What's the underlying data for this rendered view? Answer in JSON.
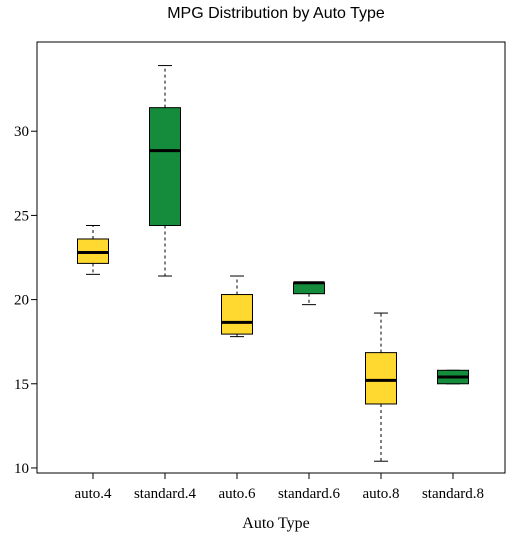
{
  "chart_data": {
    "type": "boxplot",
    "title": "MPG Distribution by Auto Type",
    "xlabel": "Auto Type",
    "ylabel": "",
    "ylim": [
      9.7,
      35.3
    ],
    "yticks": [
      10,
      15,
      20,
      25,
      30
    ],
    "grid": false,
    "categories": [
      "auto.4",
      "standard.4",
      "auto.6",
      "standard.6",
      "auto.8",
      "standard.8"
    ],
    "boxes": [
      {
        "category": "auto.4",
        "min": 21.5,
        "q1": 22.15,
        "median": 22.8,
        "q3": 23.6,
        "max": 24.4,
        "color": "#FFD92F"
      },
      {
        "category": "standard.4",
        "min": 21.4,
        "q1": 24.4,
        "median": 28.85,
        "q3": 31.4,
        "max": 33.9,
        "color": "#148C3C"
      },
      {
        "category": "auto.6",
        "min": 17.8,
        "q1": 17.95,
        "median": 18.65,
        "q3": 20.3,
        "max": 21.4,
        "color": "#FFD92F"
      },
      {
        "category": "standard.6",
        "min": 19.7,
        "q1": 20.35,
        "median": 21.0,
        "q3": 21.0,
        "max": 21.0,
        "color": "#148C3C"
      },
      {
        "category": "auto.8",
        "min": 10.4,
        "q1": 13.8,
        "median": 15.2,
        "q3": 16.85,
        "max": 19.2,
        "color": "#FFD92F"
      },
      {
        "category": "standard.8",
        "min": 15.0,
        "q1": 15.0,
        "median": 15.4,
        "q3": 15.8,
        "max": 15.8,
        "color": "#148C3C"
      }
    ]
  }
}
